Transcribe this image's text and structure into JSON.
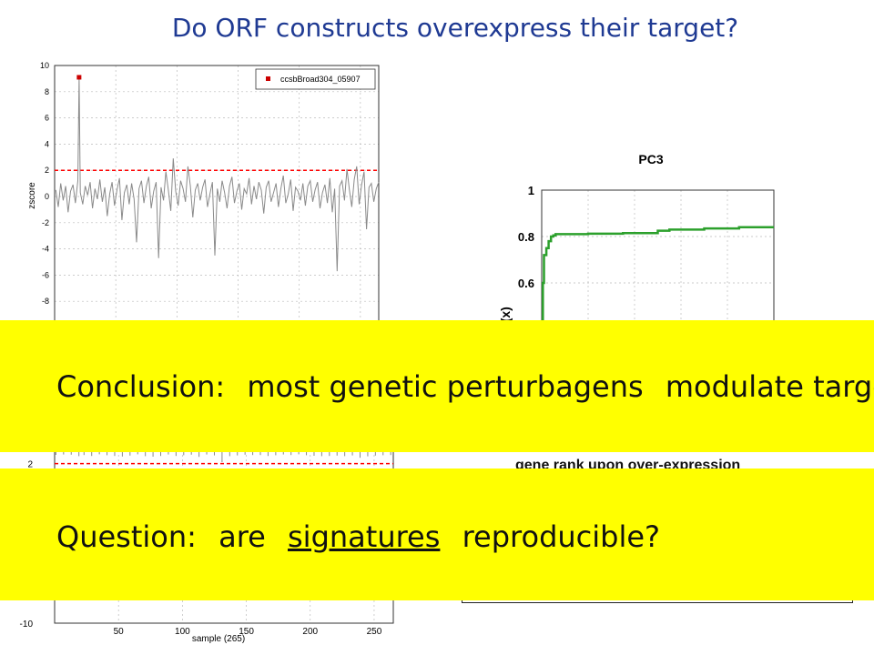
{
  "slide": {
    "title": "Do ORF constructs overexpress their target?",
    "conclusion": {
      "label": "Conclusion:",
      "text1": "most genetic perturbagens",
      "text2": "modulate target"
    },
    "question": {
      "label": "Question:",
      "text1": "are",
      "underlined": "signatures",
      "text2": "reproducible?"
    },
    "cdf_xlabel_partial": "gene rank upon over-expression"
  },
  "colors": {
    "title": "#1f3a93",
    "banner": "#ffff00",
    "threshold": "#ff0000",
    "cdf_line": "#2ca02c",
    "trace": "#8a8a8a"
  },
  "chart_data": [
    {
      "type": "line",
      "ylabel": "zscore",
      "xlim": [
        0,
        265
      ],
      "ylim": [
        -10,
        10
      ],
      "yticks": [
        10,
        8,
        6,
        4,
        2,
        0,
        -2,
        -4,
        -6,
        -8
      ],
      "legend": {
        "entry": "ccsbBroad304_05907",
        "placement": "top-right"
      },
      "threshold": 2,
      "highlight": {
        "x": 20,
        "y": 9.1
      },
      "grid": true,
      "series_x": [
        1,
        3,
        5,
        7,
        9,
        11,
        13,
        15,
        17,
        19,
        20,
        21,
        23,
        25,
        27,
        29,
        31,
        33,
        35,
        37,
        39,
        41,
        43,
        45,
        47,
        49,
        51,
        53,
        55,
        57,
        59,
        61,
        63,
        65,
        67,
        69,
        71,
        73,
        75,
        77,
        79,
        81,
        83,
        85,
        87,
        89,
        91,
        93,
        95,
        97,
        99,
        101,
        103,
        105,
        107,
        109,
        111,
        113,
        115,
        117,
        119,
        121,
        123,
        125,
        127,
        129,
        131,
        133,
        135,
        137,
        139,
        141,
        143,
        145,
        147,
        149,
        151,
        153,
        155,
        157,
        159,
        161,
        163,
        165,
        167,
        169,
        171,
        173,
        175,
        177,
        179,
        181,
        183,
        185,
        187,
        189,
        191,
        193,
        195,
        197,
        199,
        201,
        203,
        205,
        207,
        209,
        211,
        213,
        215,
        217,
        219,
        221,
        223,
        225,
        227,
        229,
        231,
        233,
        235,
        237,
        239,
        241,
        243,
        245,
        247,
        249,
        251,
        253,
        255,
        257,
        259,
        261,
        263,
        265
      ],
      "series_y": [
        0.5,
        -0.8,
        1.0,
        -0.3,
        0.8,
        -1.2,
        0.4,
        0.9,
        -0.5,
        1.2,
        9.1,
        0.3,
        -0.6,
        0.8,
        0.1,
        1.1,
        -0.9,
        0.6,
        -0.2,
        1.3,
        -0.4,
        0.7,
        -1.5,
        0.2,
        1.1,
        -0.7,
        0.5,
        1.4,
        -1.8,
        0.3,
        0.9,
        -0.6,
        1.0,
        -0.2,
        -3.5,
        0.6,
        1.2,
        -0.5,
        0.8,
        1.5,
        -0.9,
        0.4,
        1.1,
        -4.7,
        0.7,
        -0.3,
        1.9,
        0.5,
        -1.1,
        2.9,
        0.4,
        -0.7,
        1.2,
        0.6,
        -0.4,
        2.3,
        0.8,
        -1.6,
        0.5,
        1.0,
        -0.3,
        0.7,
        1.3,
        -0.8,
        0.2,
        1.1,
        -4.5,
        0.6,
        -0.4,
        1.2,
        0.3,
        -0.9,
        0.8,
        1.5,
        -0.5,
        0.4,
        1.0,
        -1.0,
        0.6,
        0.2,
        1.4,
        -0.6,
        0.8,
        -0.2,
        1.1,
        0.5,
        -1.3,
        0.7,
        1.2,
        -0.4,
        0.3,
        1.0,
        -0.8,
        0.6,
        1.6,
        -0.5,
        0.2,
        1.3,
        -1.1,
        0.7,
        0.4,
        -0.3,
        1.0,
        -0.7,
        0.8,
        1.2,
        -0.4,
        0.5,
        1.1,
        -0.9,
        0.3,
        0.9,
        -0.5,
        1.4,
        -1.2,
        0.6,
        -5.7,
        0.8,
        1.2,
        -0.3,
        2.1,
        0.5,
        -0.8,
        1.3,
        2.3,
        -0.6,
        0.9,
        1.9,
        -2.5,
        0.7,
        1.0,
        -0.4,
        0.6,
        1.1
      ]
    },
    {
      "type": "line",
      "title": "PC3",
      "ylabel": "F(x)",
      "yticks": [
        1,
        0.8,
        0.6
      ],
      "ylim": [
        0.4,
        1.0
      ],
      "xlim": [
        0,
        1
      ],
      "grid": true,
      "x": [
        0.0,
        0.005,
        0.01,
        0.02,
        0.03,
        0.04,
        0.05,
        0.06,
        0.1,
        0.2,
        0.35,
        0.5,
        0.55,
        0.7,
        0.85,
        1.0
      ],
      "y": [
        0.4,
        0.6,
        0.72,
        0.75,
        0.78,
        0.8,
        0.805,
        0.81,
        0.81,
        0.812,
        0.815,
        0.825,
        0.83,
        0.835,
        0.84,
        0.84
      ]
    },
    {
      "type": "line",
      "xlabel": "sample (265)",
      "xticks": [
        50,
        100,
        150,
        200,
        250
      ],
      "yticks": [
        2,
        -10
      ],
      "xlim": [
        0,
        265
      ],
      "ylim": [
        -10,
        3
      ],
      "threshold": 2,
      "grid": true
    }
  ]
}
